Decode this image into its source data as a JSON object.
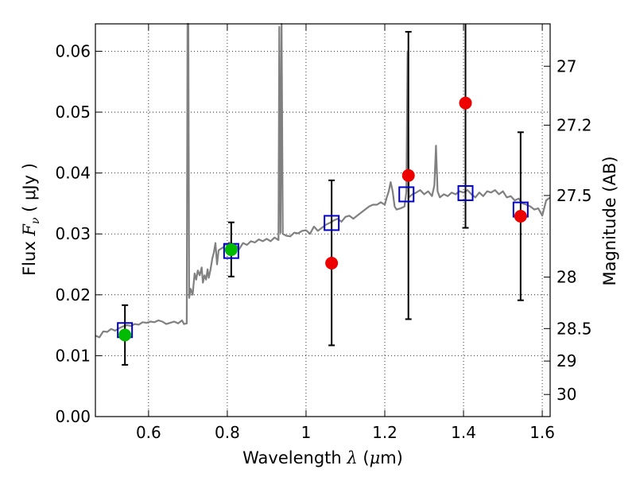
{
  "chart_data": {
    "type": "scatter",
    "title": "",
    "xlabel": "Wavelength  λ (μm)",
    "ylabel": "Flux  F_ν ( μJy )",
    "ylabel_parts": {
      "prefix": "Flux  ",
      "symbol": "F",
      "subscript": "ν",
      "unit": " ( μJy )"
    },
    "xlabel_parts": {
      "prefix": "Wavelength  ",
      "symbol": "λ",
      "unit_open": " (",
      "unit_mu": "μ",
      "unit_rest": "m)"
    },
    "y2label": "Magnitude (AB)",
    "xlim": [
      0.465,
      1.62
    ],
    "ylim": [
      0.0,
      0.0645
    ],
    "grid": true,
    "x_ticks": [
      {
        "value": 0.6,
        "label": "0.6"
      },
      {
        "value": 0.8,
        "label": "0.8"
      },
      {
        "value": 1.0,
        "label": "1"
      },
      {
        "value": 1.2,
        "label": "1.2"
      },
      {
        "value": 1.4,
        "label": "1.4"
      },
      {
        "value": 1.6,
        "label": "1.6"
      }
    ],
    "y_ticks": [
      {
        "value": 0.0,
        "label": "0.00"
      },
      {
        "value": 0.01,
        "label": "0.01"
      },
      {
        "value": 0.02,
        "label": "0.02"
      },
      {
        "value": 0.03,
        "label": "0.03"
      },
      {
        "value": 0.04,
        "label": "0.04"
      },
      {
        "value": 0.05,
        "label": "0.05"
      },
      {
        "value": 0.06,
        "label": "0.06"
      }
    ],
    "y2_ticks": [
      {
        "value": 27,
        "label": "27"
      },
      {
        "value": 27.2,
        "label": "27.2"
      },
      {
        "value": 27.5,
        "label": "27.5"
      },
      {
        "value": 28,
        "label": "28"
      },
      {
        "value": 28.5,
        "label": "28.5"
      },
      {
        "value": 29,
        "label": "29"
      },
      {
        "value": 30,
        "label": "30"
      }
    ],
    "series": [
      {
        "kind": "spectrum",
        "color": "#808080",
        "points": [
          [
            0.465,
            0.0133
          ],
          [
            0.475,
            0.013
          ],
          [
            0.485,
            0.014
          ],
          [
            0.495,
            0.0139
          ],
          [
            0.505,
            0.0144
          ],
          [
            0.515,
            0.0141
          ],
          [
            0.525,
            0.0145
          ],
          [
            0.535,
            0.0148
          ],
          [
            0.545,
            0.015
          ],
          [
            0.555,
            0.0149
          ],
          [
            0.565,
            0.0152
          ],
          [
            0.575,
            0.0151
          ],
          [
            0.585,
            0.0155
          ],
          [
            0.595,
            0.0154
          ],
          [
            0.605,
            0.0156
          ],
          [
            0.615,
            0.0155
          ],
          [
            0.625,
            0.0158
          ],
          [
            0.635,
            0.0156
          ],
          [
            0.645,
            0.0152
          ],
          [
            0.655,
            0.0154
          ],
          [
            0.665,
            0.0156
          ],
          [
            0.675,
            0.0153
          ],
          [
            0.685,
            0.0158
          ],
          [
            0.69,
            0.0152
          ],
          [
            0.697,
            0.0153
          ],
          [
            0.699,
            0.0645
          ],
          [
            0.701,
            0.0645
          ],
          [
            0.703,
            0.0195
          ],
          [
            0.707,
            0.021
          ],
          [
            0.712,
            0.02
          ],
          [
            0.717,
            0.0235
          ],
          [
            0.721,
            0.0225
          ],
          [
            0.725,
            0.024
          ],
          [
            0.73,
            0.0232
          ],
          [
            0.735,
            0.0245
          ],
          [
            0.738,
            0.022
          ],
          [
            0.742,
            0.0232
          ],
          [
            0.746,
            0.0225
          ],
          [
            0.75,
            0.0242
          ],
          [
            0.753,
            0.0228
          ],
          [
            0.757,
            0.024
          ],
          [
            0.762,
            0.026
          ],
          [
            0.766,
            0.027
          ],
          [
            0.77,
            0.0285
          ],
          [
            0.774,
            0.025
          ],
          [
            0.778,
            0.0273
          ],
          [
            0.782,
            0.0275
          ],
          [
            0.79,
            0.0278
          ],
          [
            0.795,
            0.0283
          ],
          [
            0.8,
            0.0282
          ],
          [
            0.805,
            0.0286
          ],
          [
            0.81,
            0.0278
          ],
          [
            0.815,
            0.0268
          ],
          [
            0.82,
            0.0283
          ],
          [
            0.83,
            0.0275
          ],
          [
            0.84,
            0.0285
          ],
          [
            0.85,
            0.0282
          ],
          [
            0.86,
            0.0288
          ],
          [
            0.87,
            0.0286
          ],
          [
            0.88,
            0.0291
          ],
          [
            0.89,
            0.0288
          ],
          [
            0.9,
            0.0292
          ],
          [
            0.91,
            0.0288
          ],
          [
            0.92,
            0.0294
          ],
          [
            0.93,
            0.029
          ],
          [
            0.932,
            0.064
          ],
          [
            0.935,
            0.0302
          ],
          [
            0.938,
            0.0645
          ],
          [
            0.941,
            0.03
          ],
          [
            0.95,
            0.0297
          ],
          [
            0.96,
            0.0296
          ],
          [
            0.97,
            0.0302
          ],
          [
            0.98,
            0.0301
          ],
          [
            0.99,
            0.0305
          ],
          [
            1.0,
            0.0306
          ],
          [
            1.01,
            0.03
          ],
          [
            1.02,
            0.0312
          ],
          [
            1.03,
            0.0305
          ],
          [
            1.04,
            0.031
          ],
          [
            1.05,
            0.0315
          ],
          [
            1.06,
            0.0318
          ],
          [
            1.07,
            0.0322
          ],
          [
            1.08,
            0.0325
          ],
          [
            1.09,
            0.032
          ],
          [
            1.1,
            0.0328
          ],
          [
            1.11,
            0.033
          ],
          [
            1.12,
            0.0325
          ],
          [
            1.13,
            0.033
          ],
          [
            1.14,
            0.0335
          ],
          [
            1.15,
            0.034
          ],
          [
            1.16,
            0.0345
          ],
          [
            1.17,
            0.0348
          ],
          [
            1.18,
            0.0348
          ],
          [
            1.19,
            0.0352
          ],
          [
            1.2,
            0.0348
          ],
          [
            1.205,
            0.036
          ],
          [
            1.21,
            0.037
          ],
          [
            1.215,
            0.0385
          ],
          [
            1.22,
            0.037
          ],
          [
            1.225,
            0.0345
          ],
          [
            1.23,
            0.034
          ],
          [
            1.24,
            0.0342
          ],
          [
            1.25,
            0.0345
          ],
          [
            1.255,
            0.037
          ],
          [
            1.258,
            0.06
          ],
          [
            1.261,
            0.036
          ],
          [
            1.27,
            0.0365
          ],
          [
            1.28,
            0.0368
          ],
          [
            1.29,
            0.0372
          ],
          [
            1.3,
            0.0365
          ],
          [
            1.31,
            0.037
          ],
          [
            1.32,
            0.0362
          ],
          [
            1.326,
            0.038
          ],
          [
            1.33,
            0.0445
          ],
          [
            1.334,
            0.037
          ],
          [
            1.34,
            0.036
          ],
          [
            1.35,
            0.0365
          ],
          [
            1.36,
            0.0362
          ],
          [
            1.37,
            0.0368
          ],
          [
            1.38,
            0.0365
          ],
          [
            1.39,
            0.037
          ],
          [
            1.4,
            0.0368
          ],
          [
            1.41,
            0.0372
          ],
          [
            1.42,
            0.0365
          ],
          [
            1.43,
            0.036
          ],
          [
            1.44,
            0.0368
          ],
          [
            1.45,
            0.0362
          ],
          [
            1.46,
            0.037
          ],
          [
            1.47,
            0.0368
          ],
          [
            1.48,
            0.0372
          ],
          [
            1.49,
            0.0365
          ],
          [
            1.5,
            0.037
          ],
          [
            1.51,
            0.036
          ],
          [
            1.52,
            0.0362
          ],
          [
            1.53,
            0.0355
          ],
          [
            1.54,
            0.0358
          ],
          [
            1.55,
            0.035
          ],
          [
            1.56,
            0.0348
          ],
          [
            1.57,
            0.0345
          ],
          [
            1.58,
            0.034
          ],
          [
            1.59,
            0.0342
          ],
          [
            1.6,
            0.033
          ],
          [
            1.61,
            0.0355
          ],
          [
            1.62,
            0.036
          ]
        ]
      },
      {
        "kind": "model-boxes",
        "marker": "square-open",
        "color": "#0000cc",
        "points": [
          [
            0.54,
            0.0142
          ],
          [
            0.81,
            0.0272
          ],
          [
            1.065,
            0.0318
          ],
          [
            1.255,
            0.0365
          ],
          [
            1.405,
            0.0367
          ],
          [
            1.545,
            0.034
          ]
        ]
      },
      {
        "kind": "observed-detections",
        "marker": "circle",
        "color": "#00bb00",
        "points": [
          {
            "x": 0.54,
            "y": 0.0134,
            "err_low": 0.0085,
            "err_high": 0.0183
          },
          {
            "x": 0.81,
            "y": 0.0274,
            "err_low": 0.023,
            "err_high": 0.0319
          }
        ]
      },
      {
        "kind": "observed-nir",
        "marker": "circle",
        "color": "#ee0000",
        "points": [
          {
            "x": 1.065,
            "y": 0.0252,
            "err_low": 0.0117,
            "err_high": 0.0388
          },
          {
            "x": 1.26,
            "y": 0.0396,
            "err_low": 0.016,
            "err_high": 0.0632
          },
          {
            "x": 1.405,
            "y": 0.0515,
            "err_low": 0.031,
            "err_high": 0.0645
          },
          {
            "x": 1.545,
            "y": 0.0329,
            "err_low": 0.0191,
            "err_high": 0.0467
          }
        ]
      }
    ]
  }
}
